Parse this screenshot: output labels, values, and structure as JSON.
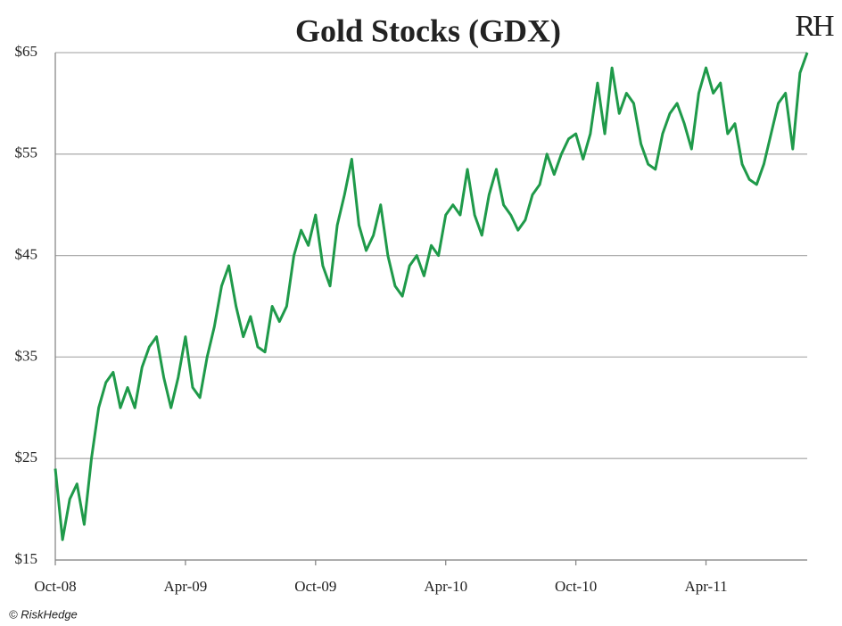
{
  "chart_data": {
    "type": "line",
    "title": "Gold Stocks (GDX)",
    "logo": "RH",
    "footer": "© RiskHedge",
    "categories": [
      "Oct-08",
      null,
      null,
      null,
      null,
      null,
      null,
      null,
      null,
      null,
      null,
      null,
      null,
      null,
      null,
      null,
      null,
      null,
      "Apr-09",
      null,
      null,
      null,
      null,
      null,
      null,
      null,
      null,
      null,
      null,
      null,
      null,
      null,
      null,
      null,
      null,
      null,
      "Oct-09",
      null,
      null,
      null,
      null,
      null,
      null,
      null,
      null,
      null,
      null,
      null,
      null,
      null,
      null,
      null,
      null,
      null,
      "Apr-10",
      null,
      null,
      null,
      null,
      null,
      null,
      null,
      null,
      null,
      null,
      null,
      null,
      null,
      null,
      null,
      null,
      null,
      "Oct-10",
      null,
      null,
      null,
      null,
      null,
      null,
      null,
      null,
      null,
      null,
      null,
      null,
      null,
      null,
      null,
      null,
      null,
      "Apr-11",
      null,
      null,
      null,
      null,
      null,
      null,
      null,
      null,
      null,
      null,
      null,
      null,
      null,
      null
    ],
    "series": [
      {
        "name": "GDX",
        "color": "#1f9a4a",
        "values": [
          24,
          17,
          21,
          22.5,
          18.5,
          25,
          30,
          32.5,
          33.5,
          30,
          32,
          30,
          34,
          36,
          37,
          33,
          30,
          33,
          37,
          32,
          31,
          35,
          38,
          42,
          44,
          40,
          37,
          39,
          36,
          35.5,
          40,
          38.5,
          40,
          45,
          47.5,
          46,
          49,
          44,
          42,
          48,
          51,
          54.5,
          48,
          45.5,
          47,
          50,
          45,
          42,
          41,
          44,
          45,
          43,
          46,
          45,
          49,
          50,
          49,
          53.5,
          49,
          47,
          51,
          53.5,
          50,
          49,
          47.5,
          48.5,
          51,
          52,
          55,
          53,
          55,
          56.5,
          57,
          54.5,
          57,
          62,
          57,
          63.5,
          59,
          61,
          60,
          56,
          54,
          53.5,
          57,
          59,
          60,
          58,
          55.5,
          61,
          63.5,
          61,
          62,
          57,
          58,
          54,
          52.5,
          52,
          54,
          57,
          60,
          61,
          55.5,
          63,
          65
        ]
      }
    ],
    "ylim": [
      15,
      65
    ],
    "yticks": [
      {
        "value": 15,
        "label": "$15"
      },
      {
        "value": 25,
        "label": "$25"
      },
      {
        "value": 35,
        "label": "$35"
      },
      {
        "value": 45,
        "label": "$45"
      },
      {
        "value": 55,
        "label": "$55"
      },
      {
        "value": 65,
        "label": "$65"
      }
    ],
    "grid": true
  }
}
